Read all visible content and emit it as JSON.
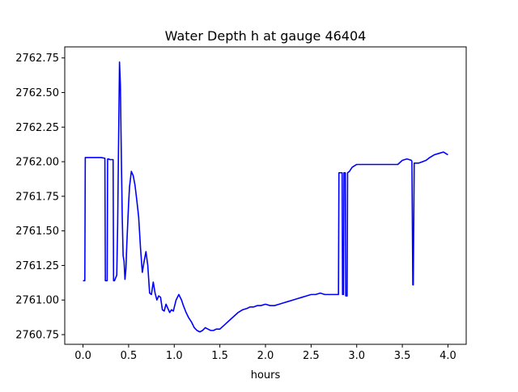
{
  "chart_data": {
    "type": "line",
    "title": "Water Depth h at gauge 46404",
    "xlabel": "hours",
    "ylabel": "",
    "xlim": [
      -0.2,
      4.2
    ],
    "ylim": [
      2760.68,
      2762.83
    ],
    "xticks": [
      0.0,
      0.5,
      1.0,
      1.5,
      2.0,
      2.5,
      3.0,
      3.5,
      4.0
    ],
    "xtick_labels": [
      "0.0",
      "0.5",
      "1.0",
      "1.5",
      "2.0",
      "2.5",
      "3.0",
      "3.5",
      "4.0"
    ],
    "yticks": [
      2760.75,
      2761.0,
      2761.25,
      2761.5,
      2761.75,
      2762.0,
      2762.25,
      2762.5,
      2762.75
    ],
    "ytick_labels": [
      "2760.75",
      "2761.00",
      "2761.25",
      "2761.50",
      "2761.75",
      "2762.00",
      "2762.25",
      "2762.50",
      "2762.75"
    ],
    "grid": false,
    "line_color": "#0000ff",
    "series": [
      {
        "x": [
          0.0,
          0.02,
          0.025,
          0.05,
          0.1,
          0.15,
          0.2,
          0.24,
          0.245,
          0.265,
          0.27,
          0.285,
          0.29,
          0.33,
          0.335,
          0.345,
          0.37,
          0.38,
          0.39,
          0.4,
          0.41,
          0.42,
          0.43,
          0.44,
          0.45,
          0.46,
          0.47,
          0.48,
          0.5,
          0.51,
          0.53,
          0.55,
          0.57,
          0.59,
          0.61,
          0.63,
          0.65,
          0.67,
          0.69,
          0.71,
          0.73,
          0.75,
          0.77,
          0.79,
          0.81,
          0.83,
          0.85,
          0.87,
          0.89,
          0.91,
          0.93,
          0.95,
          0.97,
          0.99,
          1.02,
          1.05,
          1.08,
          1.1,
          1.13,
          1.16,
          1.19,
          1.22,
          1.25,
          1.28,
          1.31,
          1.34,
          1.37,
          1.4,
          1.43,
          1.46,
          1.5,
          1.55,
          1.6,
          1.65,
          1.7,
          1.75,
          1.8,
          1.83,
          1.87,
          1.91,
          1.95,
          2.0,
          2.05,
          2.1,
          2.15,
          2.2,
          2.25,
          2.3,
          2.35,
          2.4,
          2.45,
          2.5,
          2.55,
          2.6,
          2.65,
          2.7,
          2.75,
          2.8,
          2.805,
          2.84,
          2.845,
          2.855,
          2.86,
          2.875,
          2.88,
          2.895,
          2.9,
          2.92,
          2.95,
          3.0,
          3.05,
          3.1,
          3.15,
          3.2,
          3.25,
          3.3,
          3.35,
          3.4,
          3.45,
          3.5,
          3.55,
          3.6,
          3.605,
          3.615,
          3.62,
          3.63,
          3.64,
          3.68,
          3.72,
          3.76,
          3.8,
          3.85,
          3.9,
          3.95,
          4.0
        ],
        "y": [
          2761.14,
          2761.14,
          2762.03,
          2762.03,
          2762.03,
          2762.03,
          2762.03,
          2762.025,
          2761.14,
          2761.14,
          2762.02,
          2762.02,
          2762.015,
          2762.015,
          2761.14,
          2761.14,
          2761.18,
          2761.55,
          2762.15,
          2762.72,
          2762.55,
          2762.05,
          2761.6,
          2761.32,
          2761.28,
          2761.15,
          2761.22,
          2761.4,
          2761.7,
          2761.82,
          2761.93,
          2761.9,
          2761.83,
          2761.72,
          2761.6,
          2761.38,
          2761.2,
          2761.28,
          2761.35,
          2761.25,
          2761.05,
          2761.04,
          2761.13,
          2761.05,
          2761.0,
          2761.03,
          2761.02,
          2760.93,
          2760.92,
          2760.97,
          2760.94,
          2760.91,
          2760.93,
          2760.92,
          2761.0,
          2761.04,
          2761.0,
          2760.96,
          2760.91,
          2760.87,
          2760.84,
          2760.8,
          2760.78,
          2760.77,
          2760.78,
          2760.8,
          2760.79,
          2760.78,
          2760.78,
          2760.79,
          2760.79,
          2760.82,
          2760.85,
          2760.88,
          2760.91,
          2760.93,
          2760.94,
          2760.95,
          2760.95,
          2760.96,
          2760.96,
          2760.97,
          2760.96,
          2760.96,
          2760.97,
          2760.98,
          2760.99,
          2761.0,
          2761.01,
          2761.02,
          2761.03,
          2761.04,
          2761.04,
          2761.05,
          2761.04,
          2761.04,
          2761.04,
          2761.04,
          2761.92,
          2761.92,
          2761.04,
          2761.04,
          2761.92,
          2761.92,
          2761.03,
          2761.03,
          2761.92,
          2761.93,
          2761.96,
          2761.98,
          2761.98,
          2761.98,
          2761.98,
          2761.98,
          2761.98,
          2761.98,
          2761.98,
          2761.98,
          2761.98,
          2762.01,
          2762.02,
          2762.01,
          2762.0,
          2761.11,
          2761.11,
          2761.99,
          2761.99,
          2761.99,
          2762.0,
          2762.01,
          2762.03,
          2762.05,
          2762.06,
          2762.07,
          2762.05
        ]
      }
    ]
  }
}
